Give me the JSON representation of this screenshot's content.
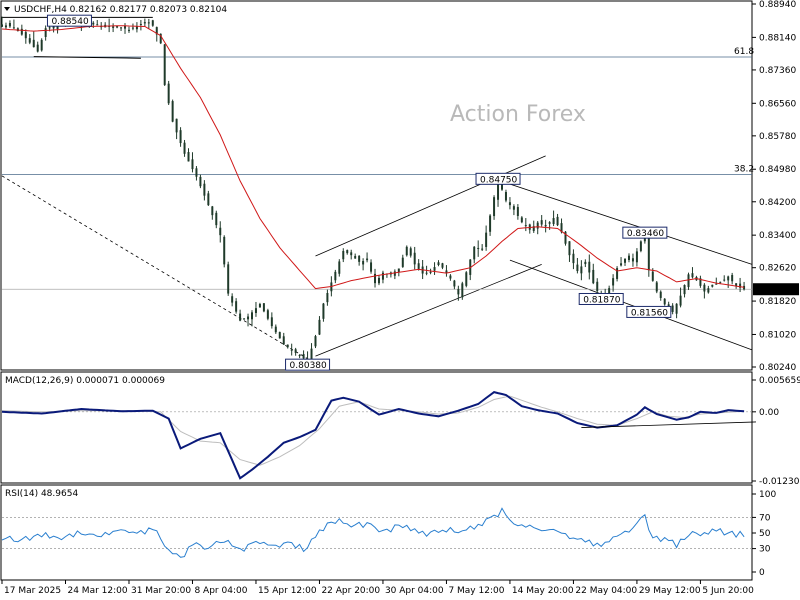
{
  "watermark": "Action Forex",
  "chart_data": {
    "type": "line",
    "panes": [
      {
        "name": "price",
        "header": "USDCHF,H4  0.82162 0.82177 0.82073 0.82104",
        "symbol": "USDCHF",
        "timeframe": "H4",
        "ohlc": {
          "open": 0.82162,
          "high": 0.82177,
          "low": 0.82073,
          "close": 0.82104
        },
        "ylim": [
          0.8024,
          0.8894
        ],
        "y_ticks": [
          "0.88940",
          "0.88140",
          "0.87360",
          "0.86560",
          "0.85780",
          "0.84980",
          "0.84200",
          "0.83400",
          "0.82620",
          "0.81820",
          "0.81020",
          "0.80240"
        ],
        "last_price_label": "0.82104",
        "annotations": [
          {
            "label": "0.88540",
            "x_index": 17,
            "value": 0.8854
          },
          {
            "label": "0.84750",
            "x_index": 125,
            "value": 0.8475
          },
          {
            "label": "0.83460",
            "x_index": 162,
            "value": 0.8346
          },
          {
            "label": "0.81870",
            "x_index": 151,
            "value": 0.8187
          },
          {
            "label": "0.81560",
            "x_index": 163,
            "value": 0.8156
          },
          {
            "label": "0.80380",
            "x_index": 77,
            "value": 0.8038
          }
        ],
        "fib_levels": [
          {
            "label": "61.8",
            "value": 0.8767
          },
          {
            "label": "38.2",
            "value": 0.8485
          }
        ],
        "candles_ohlc_start_date": "17 Mar 2025",
        "price_path": [
          [
            0,
            0.8845
          ],
          [
            3,
            0.8838
          ],
          [
            6,
            0.8812
          ],
          [
            9,
            0.878
          ],
          [
            11,
            0.8836
          ],
          [
            14,
            0.8842
          ],
          [
            17,
            0.8854
          ],
          [
            20,
            0.8846
          ],
          [
            23,
            0.8849
          ],
          [
            26,
            0.8838
          ],
          [
            29,
            0.8841
          ],
          [
            32,
            0.8832
          ],
          [
            35,
            0.8845
          ],
          [
            37,
            0.885
          ],
          [
            38,
            0.8842
          ],
          [
            40,
            0.88
          ],
          [
            41,
            0.87
          ],
          [
            43,
            0.8612
          ],
          [
            46,
            0.8535
          ],
          [
            49,
            0.848
          ],
          [
            52,
            0.8412
          ],
          [
            55,
            0.834
          ],
          [
            57,
            0.82
          ],
          [
            60,
            0.8135
          ],
          [
            62,
            0.8145
          ],
          [
            65,
            0.8175
          ],
          [
            68,
            0.8122
          ],
          [
            71,
            0.8078
          ],
          [
            74,
            0.8058
          ],
          [
            77,
            0.8038
          ],
          [
            79,
            0.8098
          ],
          [
            81,
            0.8176
          ],
          [
            84,
            0.8252
          ],
          [
            86,
            0.8302
          ],
          [
            88,
            0.8292
          ],
          [
            90,
            0.8276
          ],
          [
            92,
            0.828
          ],
          [
            94,
            0.8225
          ],
          [
            96,
            0.825
          ],
          [
            98,
            0.8246
          ],
          [
            100,
            0.826
          ],
          [
            102,
            0.8312
          ],
          [
            104,
            0.827
          ],
          [
            106,
            0.8248
          ],
          [
            108,
            0.8252
          ],
          [
            110,
            0.8275
          ],
          [
            113,
            0.8236
          ],
          [
            115,
            0.8198
          ],
          [
            117,
            0.8251
          ],
          [
            119,
            0.8312
          ],
          [
            121,
            0.8305
          ],
          [
            123,
            0.8387
          ],
          [
            125,
            0.8475
          ],
          [
            127,
            0.8423
          ],
          [
            129,
            0.8401
          ],
          [
            131,
            0.8371
          ],
          [
            133,
            0.8353
          ],
          [
            135,
            0.837
          ],
          [
            137,
            0.8361
          ],
          [
            139,
            0.8381
          ],
          [
            141,
            0.8347
          ],
          [
            143,
            0.8292
          ],
          [
            145,
            0.8254
          ],
          [
            147,
            0.8276
          ],
          [
            149,
            0.8225
          ],
          [
            151,
            0.8187
          ],
          [
            153,
            0.8213
          ],
          [
            155,
            0.8261
          ],
          [
            157,
            0.8284
          ],
          [
            159,
            0.8277
          ],
          [
            161,
            0.8325
          ],
          [
            162,
            0.8346
          ],
          [
            163,
            0.8256
          ],
          [
            165,
            0.8205
          ],
          [
            167,
            0.8174
          ],
          [
            169,
            0.8156
          ],
          [
            171,
            0.8195
          ],
          [
            173,
            0.8246
          ],
          [
            175,
            0.8232
          ],
          [
            177,
            0.8205
          ],
          [
            179,
            0.8221
          ],
          [
            181,
            0.8226
          ],
          [
            183,
            0.8241
          ],
          [
            185,
            0.8218
          ],
          [
            187,
            0.821
          ]
        ],
        "ma_path": [
          [
            0,
            0.8834
          ],
          [
            8,
            0.8829
          ],
          [
            15,
            0.8833
          ],
          [
            22,
            0.884
          ],
          [
            30,
            0.8842
          ],
          [
            36,
            0.884
          ],
          [
            40,
            0.8818
          ],
          [
            45,
            0.874
          ],
          [
            50,
            0.867
          ],
          [
            55,
            0.858
          ],
          [
            60,
            0.847
          ],
          [
            65,
            0.838
          ],
          [
            70,
            0.831
          ],
          [
            75,
            0.8255
          ],
          [
            79,
            0.8212
          ],
          [
            83,
            0.8217
          ],
          [
            88,
            0.8231
          ],
          [
            95,
            0.8244
          ],
          [
            105,
            0.8258
          ],
          [
            112,
            0.8249
          ],
          [
            118,
            0.8262
          ],
          [
            122,
            0.829
          ],
          [
            126,
            0.8325
          ],
          [
            130,
            0.8356
          ],
          [
            135,
            0.836
          ],
          [
            140,
            0.8356
          ],
          [
            145,
            0.8322
          ],
          [
            150,
            0.8285
          ],
          [
            155,
            0.8254
          ],
          [
            160,
            0.8262
          ],
          [
            165,
            0.8254
          ],
          [
            170,
            0.8228
          ],
          [
            175,
            0.8236
          ],
          [
            180,
            0.8225
          ],
          [
            187,
            0.8215
          ]
        ]
      },
      {
        "name": "macd",
        "header": "MACD(12,26,9) 0.000071 0.000069",
        "params": "12,26,9",
        "main": 7.1e-05,
        "signal": 6.9e-05,
        "ylim": [
          -0.012301,
          0.005659
        ],
        "y_ticks": [
          "0.005659",
          "0.00",
          "-0.012301"
        ],
        "main_path": [
          [
            0,
            0.0
          ],
          [
            10,
            -0.0003
          ],
          [
            20,
            0.0005
          ],
          [
            30,
            0.0001
          ],
          [
            38,
            0.0002
          ],
          [
            42,
            -0.0012
          ],
          [
            45,
            -0.0065
          ],
          [
            50,
            -0.0048
          ],
          [
            55,
            -0.0038
          ],
          [
            60,
            -0.0118
          ],
          [
            63,
            -0.0103
          ],
          [
            67,
            -0.008
          ],
          [
            71,
            -0.0055
          ],
          [
            75,
            -0.0045
          ],
          [
            79,
            -0.0032
          ],
          [
            83,
            0.002
          ],
          [
            86,
            0.0025
          ],
          [
            90,
            0.0018
          ],
          [
            95,
            -0.0005
          ],
          [
            100,
            0.0005
          ],
          [
            105,
            -0.0003
          ],
          [
            110,
            -0.0008
          ],
          [
            115,
            0.0002
          ],
          [
            120,
            0.0014
          ],
          [
            124,
            0.0035
          ],
          [
            127,
            0.003
          ],
          [
            131,
            0.001
          ],
          [
            135,
            0.0003
          ],
          [
            140,
            -0.0003
          ],
          [
            145,
            -0.002
          ],
          [
            150,
            -0.0028
          ],
          [
            155,
            -0.0024
          ],
          [
            160,
            -0.0005
          ],
          [
            162,
            0.0008
          ],
          [
            165,
            -0.0004
          ],
          [
            170,
            -0.0014
          ],
          [
            173,
            -0.001
          ],
          [
            176,
            0.0
          ],
          [
            180,
            -0.0002
          ],
          [
            183,
            0.0003
          ],
          [
            187,
            0.0001
          ]
        ],
        "signal_path": [
          [
            0,
            0.0002
          ],
          [
            10,
            0.0
          ],
          [
            20,
            0.0002
          ],
          [
            30,
            0.0002
          ],
          [
            40,
            0.0
          ],
          [
            45,
            -0.0035
          ],
          [
            50,
            -0.0052
          ],
          [
            55,
            -0.0055
          ],
          [
            60,
            -0.0085
          ],
          [
            65,
            -0.0095
          ],
          [
            70,
            -0.008
          ],
          [
            75,
            -0.006
          ],
          [
            80,
            -0.003
          ],
          [
            85,
            0.001
          ],
          [
            90,
            0.0018
          ],
          [
            95,
            0.0005
          ],
          [
            100,
            0.0003
          ],
          [
            105,
            0.0
          ],
          [
            110,
            -0.0004
          ],
          [
            115,
            -0.0002
          ],
          [
            120,
            0.0008
          ],
          [
            124,
            0.0022
          ],
          [
            128,
            0.0028
          ],
          [
            132,
            0.0018
          ],
          [
            136,
            0.0008
          ],
          [
            140,
            0.0
          ],
          [
            145,
            -0.0012
          ],
          [
            150,
            -0.0022
          ],
          [
            155,
            -0.0024
          ],
          [
            160,
            -0.0012
          ],
          [
            164,
            0.0
          ],
          [
            168,
            -0.0008
          ],
          [
            172,
            -0.001
          ],
          [
            176,
            -0.0004
          ],
          [
            180,
            -0.0002
          ],
          [
            187,
            0.0001
          ]
        ],
        "trendline": [
          [
            146,
            -0.0028
          ],
          [
            190,
            -0.0018
          ]
        ]
      },
      {
        "name": "rsi",
        "header": "RSI(14) 48.9654",
        "period": 14,
        "value": 48.9654,
        "ylim": [
          0,
          100
        ],
        "y_ticks": [
          "100",
          "70",
          "50",
          "30",
          "0"
        ],
        "levels": [
          70,
          30
        ],
        "path": [
          [
            0,
            45
          ],
          [
            5,
            40
          ],
          [
            10,
            48
          ],
          [
            15,
            44
          ],
          [
            20,
            52
          ],
          [
            25,
            46
          ],
          [
            30,
            55
          ],
          [
            35,
            50
          ],
          [
            38,
            58
          ],
          [
            40,
            40
          ],
          [
            42,
            25
          ],
          [
            45,
            18
          ],
          [
            48,
            35
          ],
          [
            52,
            30
          ],
          [
            56,
            42
          ],
          [
            60,
            28
          ],
          [
            64,
            38
          ],
          [
            68,
            32
          ],
          [
            72,
            36
          ],
          [
            76,
            30
          ],
          [
            79,
            45
          ],
          [
            82,
            60
          ],
          [
            85,
            65
          ],
          [
            88,
            58
          ],
          [
            92,
            62
          ],
          [
            96,
            52
          ],
          [
            100,
            58
          ],
          [
            104,
            55
          ],
          [
            108,
            48
          ],
          [
            112,
            55
          ],
          [
            116,
            52
          ],
          [
            120,
            58
          ],
          [
            124,
            70
          ],
          [
            126,
            78
          ],
          [
            128,
            65
          ],
          [
            132,
            60
          ],
          [
            136,
            55
          ],
          [
            140,
            52
          ],
          [
            144,
            45
          ],
          [
            148,
            38
          ],
          [
            152,
            35
          ],
          [
            156,
            48
          ],
          [
            160,
            62
          ],
          [
            162,
            70
          ],
          [
            164,
            45
          ],
          [
            168,
            40
          ],
          [
            170,
            35
          ],
          [
            173,
            50
          ],
          [
            176,
            44
          ],
          [
            180,
            55
          ],
          [
            183,
            48
          ],
          [
            187,
            49
          ]
        ]
      }
    ],
    "x_labels": [
      "17 Mar 2025",
      "24 Mar 12:00",
      "31 Mar 20:00",
      "8 Apr 04:00",
      "15 Apr 12:00",
      "22 Apr 20:00",
      "30 Apr 04:00",
      "7 May 12:00",
      "14 May 20:00",
      "22 May 04:00",
      "29 May 12:00",
      "5 Jun 20:00"
    ],
    "x_label_positions": [
      0,
      16,
      32,
      48,
      64,
      80,
      96,
      112,
      128,
      144,
      160,
      176
    ],
    "x_count": 190
  }
}
